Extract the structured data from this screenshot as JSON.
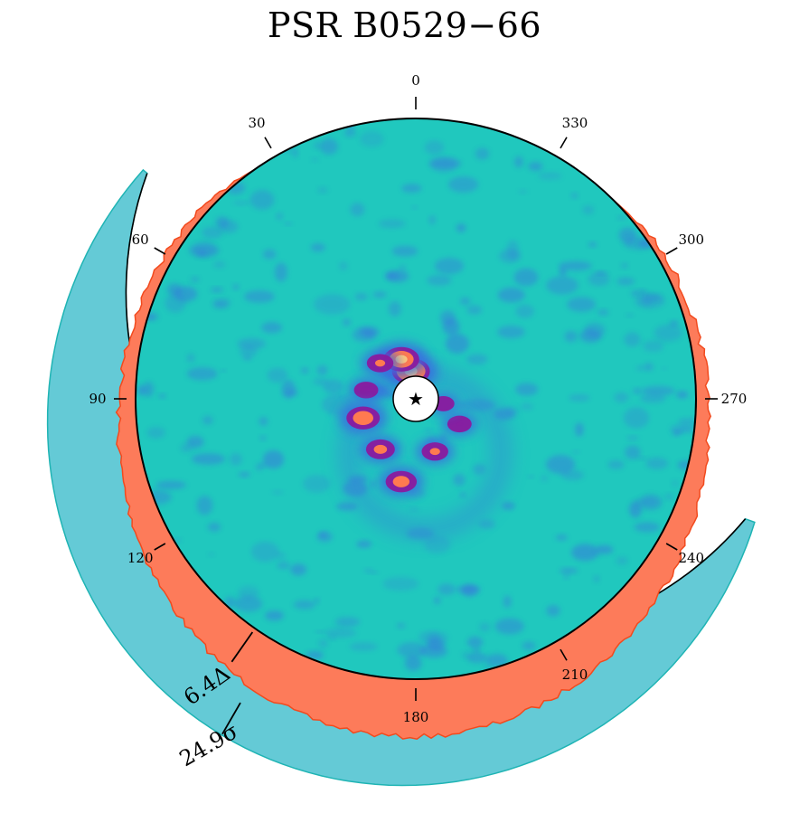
{
  "chart_data": {
    "type": "heatmap",
    "title": "PSR B0529−66",
    "projection": "polar",
    "angular_ticks": [
      {
        "angle": 0,
        "label": "0"
      },
      {
        "angle": 30,
        "label": "30"
      },
      {
        "angle": 60,
        "label": "60"
      },
      {
        "angle": 90,
        "label": "90"
      },
      {
        "angle": 120,
        "label": "120"
      },
      {
        "angle": 180,
        "label": "180"
      },
      {
        "angle": 210,
        "label": "210"
      },
      {
        "angle": 240,
        "label": "240"
      },
      {
        "angle": 270,
        "label": "270"
      },
      {
        "angle": 300,
        "label": "300"
      },
      {
        "angle": 330,
        "label": "330"
      }
    ],
    "angular_direction": "counterclockwise",
    "zero_location": "top",
    "center_marker": "star-icon",
    "annotations": [
      {
        "label": "6.4Δ",
        "angle": 145
      },
      {
        "label": "24.9σ",
        "angle": 150
      }
    ],
    "hotspots": [
      {
        "angle": 10,
        "r_frac": 0.1,
        "intensity": 1.0
      },
      {
        "angle": 20,
        "r_frac": 0.15,
        "intensity": 0.9
      },
      {
        "angle": 45,
        "r_frac": 0.18,
        "intensity": 0.5
      },
      {
        "angle": 80,
        "r_frac": 0.18,
        "intensity": 0.4
      },
      {
        "angle": 110,
        "r_frac": 0.2,
        "intensity": 0.8
      },
      {
        "angle": 145,
        "r_frac": 0.22,
        "intensity": 0.6
      },
      {
        "angle": 170,
        "r_frac": 0.3,
        "intensity": 0.7
      },
      {
        "angle": 200,
        "r_frac": 0.2,
        "intensity": 0.5
      },
      {
        "angle": 240,
        "r_frac": 0.18,
        "intensity": 0.4
      },
      {
        "angle": 260,
        "r_frac": 0.1,
        "intensity": 0.3
      }
    ],
    "colors": {
      "background": "#20c8be",
      "low": "#3a6ee0",
      "mid": "#8a1a9e",
      "high": "#ff7a50",
      "peak": "#ffd080",
      "orange_profile": "#fd7b5a",
      "orange_edge": "#f24a1e",
      "teal_profile": "#64cad6",
      "teal_edge": "#1fb4b4"
    }
  }
}
